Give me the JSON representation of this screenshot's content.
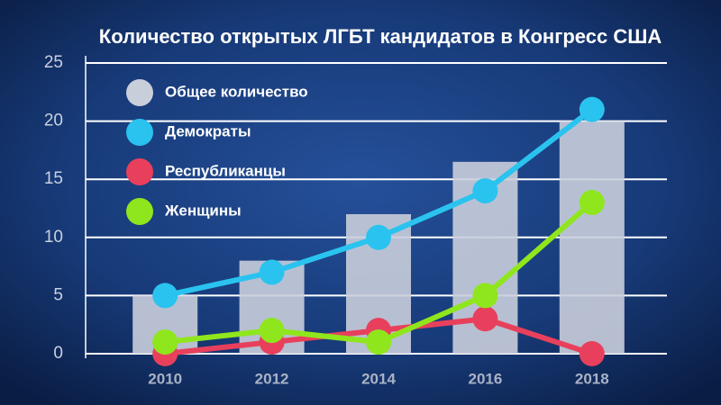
{
  "chart_data": {
    "type": "bar",
    "title": "Количество открытых ЛГБТ кандидатов в Конгресс США",
    "categories": [
      "2010",
      "2012",
      "2014",
      "2016",
      "2018"
    ],
    "series": [
      {
        "name": "Общее количество",
        "type": "bar",
        "color": "#c9cedb",
        "values": [
          5,
          8,
          12,
          16.5,
          20
        ]
      },
      {
        "name": "Демократы",
        "type": "line",
        "color": "#2ac3ef",
        "values": [
          5,
          7,
          10,
          14,
          21
        ]
      },
      {
        "name": "Республиканцы",
        "type": "line",
        "color": "#e8405c",
        "values": [
          0,
          1,
          2,
          3,
          0
        ]
      },
      {
        "name": "Женщины",
        "type": "line",
        "color": "#8fe61c",
        "values": [
          1,
          2,
          1,
          5,
          13
        ]
      }
    ],
    "ylim": [
      0,
      25
    ],
    "yticks": [
      0,
      5,
      10,
      15,
      20,
      25
    ],
    "grid": true,
    "legend": "top-left"
  }
}
